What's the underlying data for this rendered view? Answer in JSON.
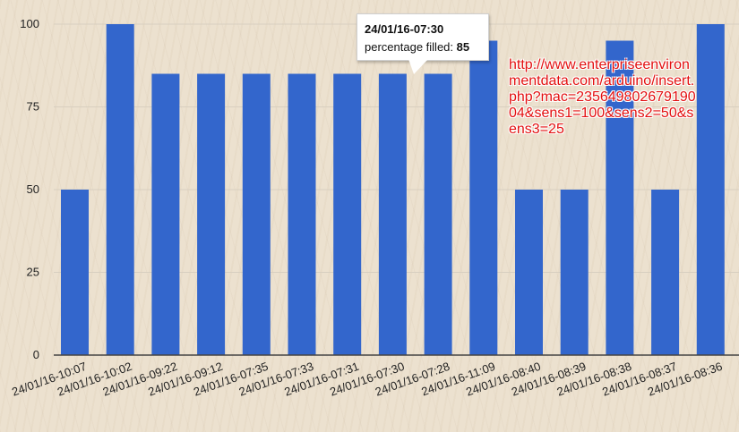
{
  "annotation_text": "http://www.enterpriseenvironmentdata.com/arduino/insert.php?mac=23564980267919004&sens1=100&sens2=50&sens3=25",
  "tooltip": {
    "title": "24/01/16-07:30",
    "label": "percentage filled:",
    "value": "85"
  },
  "colors": {
    "bar": "#3366cc",
    "grid": "#d8cfc0",
    "axis": "#444444"
  },
  "chart_data": {
    "type": "bar",
    "categories": [
      "24/01/16-10:07",
      "24/01/16-10:02",
      "24/01/16-09:22",
      "24/01/16-09:12",
      "24/01/16-07:35",
      "24/01/16-07:33",
      "24/01/16-07:31",
      "24/01/16-07:30",
      "24/01/16-07:28",
      "24/01/16-11:09",
      "24/01/16-08:40",
      "24/01/16-08:39",
      "24/01/16-08:38",
      "24/01/16-08:37",
      "24/01/16-08:36"
    ],
    "series": [
      {
        "values": [
          50,
          100,
          85,
          85,
          85,
          85,
          85,
          85,
          85,
          95,
          50,
          50,
          95,
          50,
          100
        ]
      }
    ],
    "ylim": [
      0,
      100
    ],
    "yticks": [
      "0",
      "25",
      "50",
      "75",
      "100"
    ],
    "grid": true,
    "legend": "none"
  }
}
